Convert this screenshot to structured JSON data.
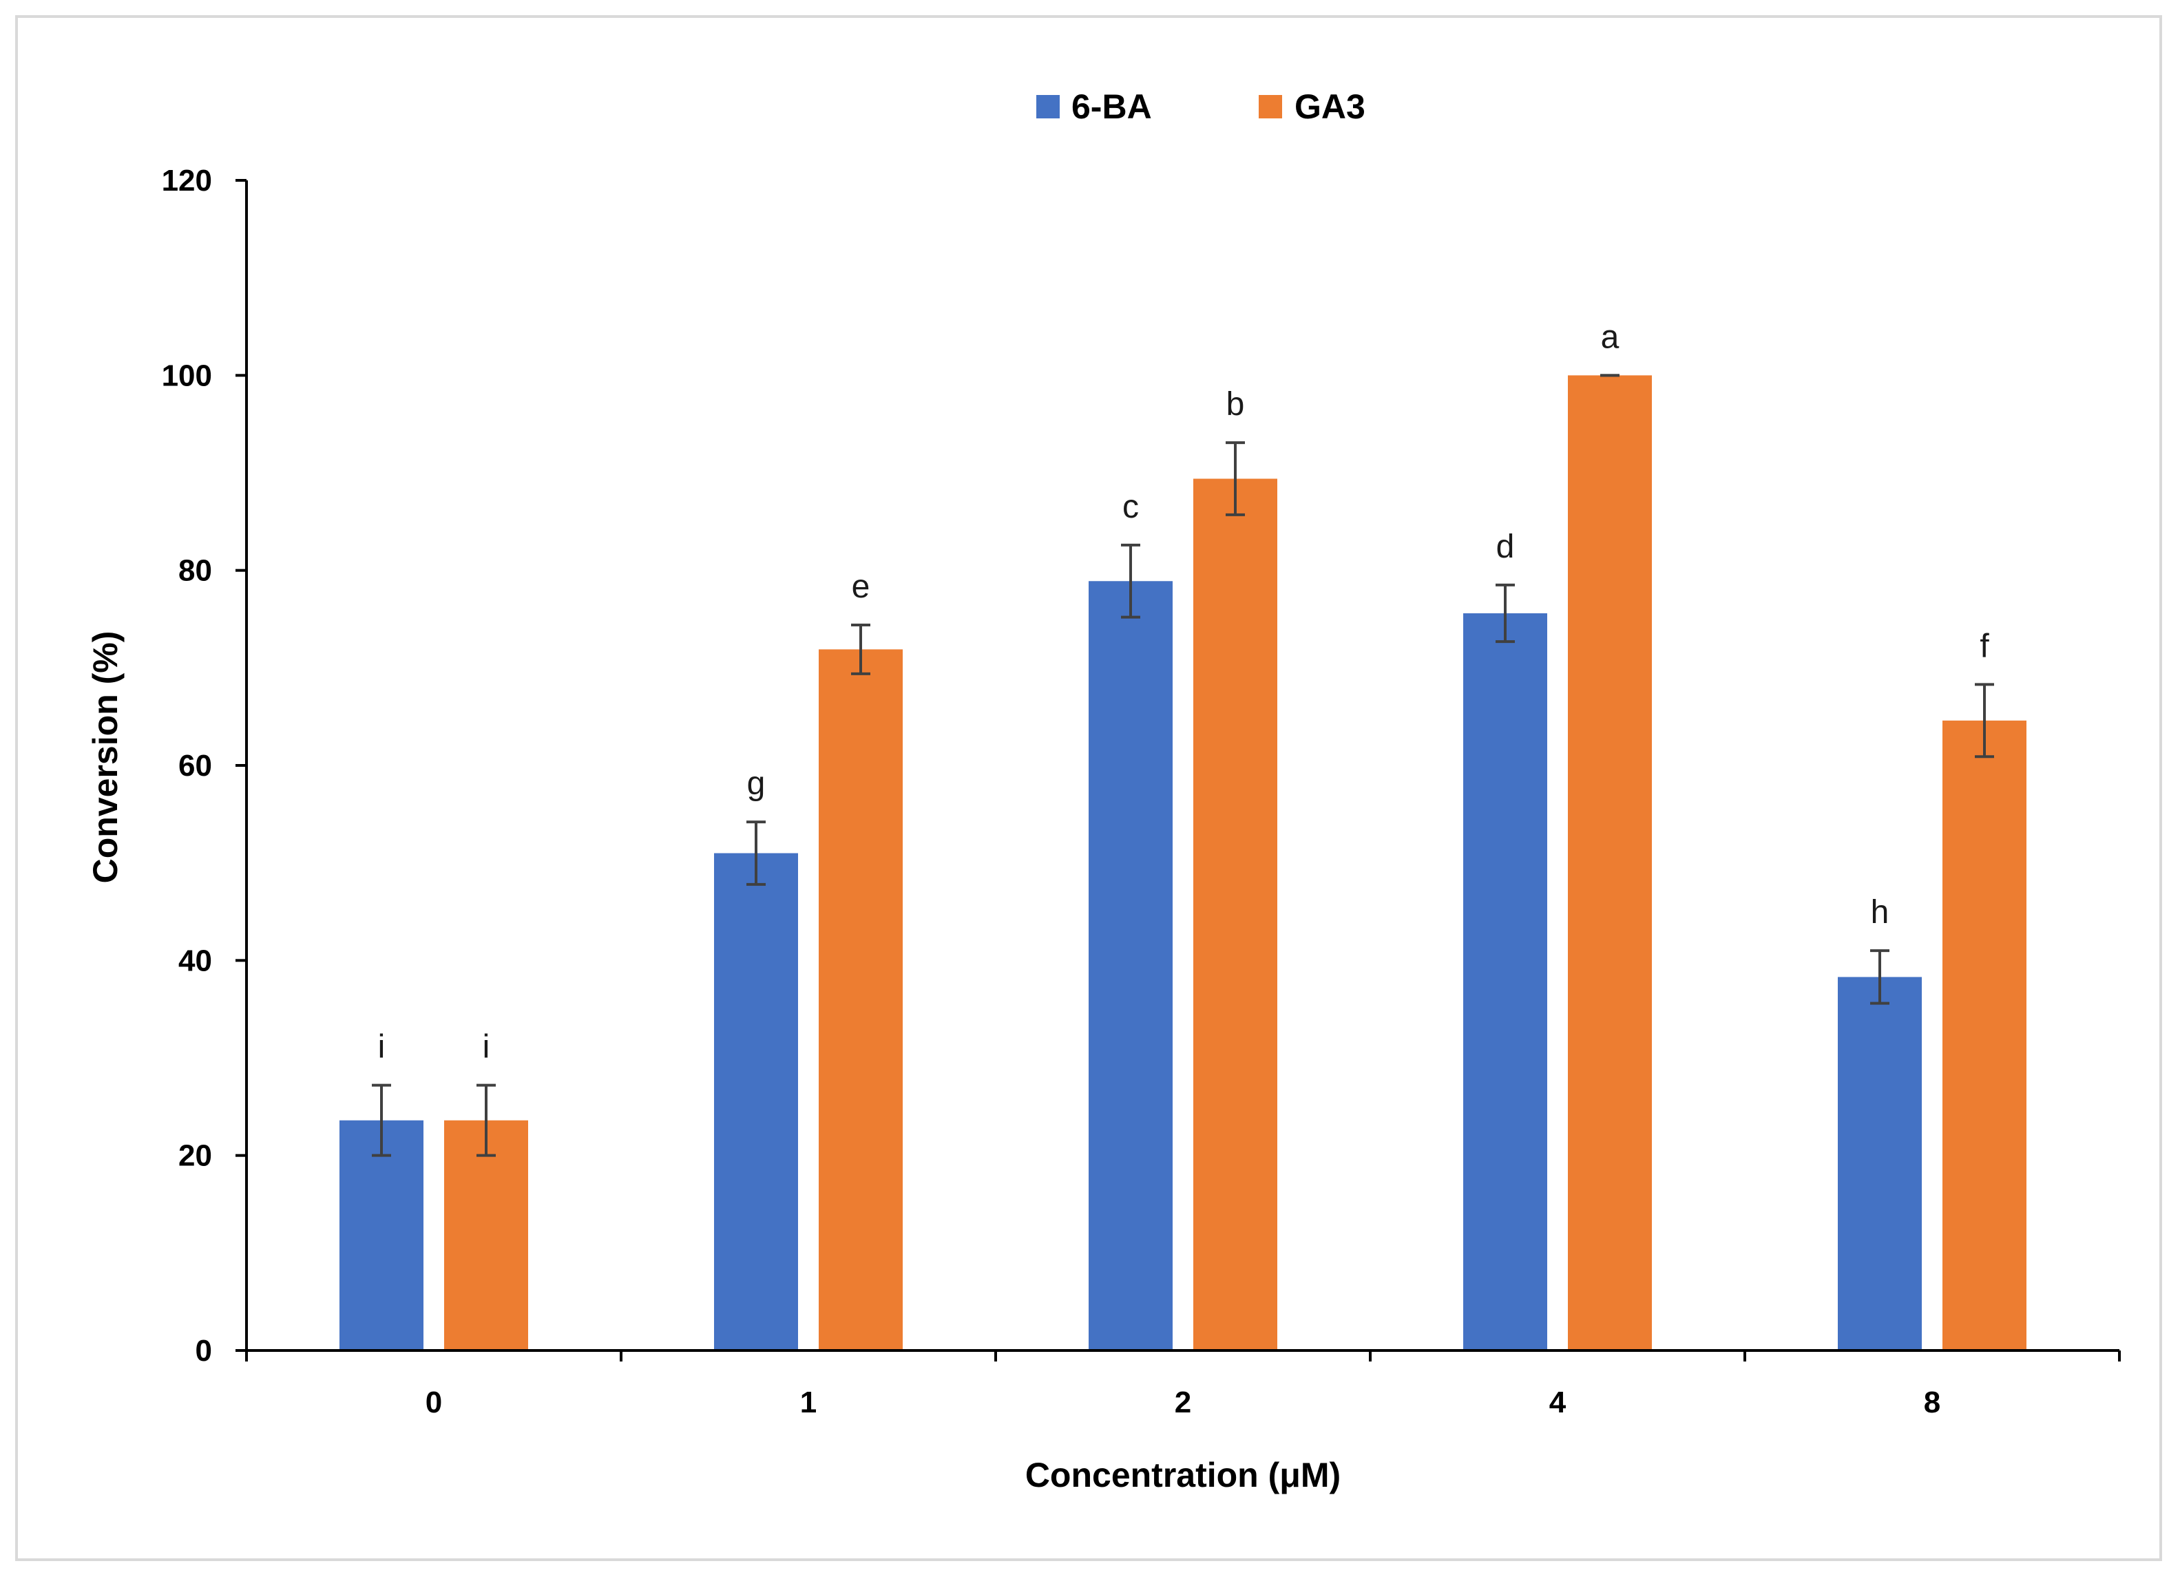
{
  "chart_data": {
    "type": "bar",
    "title": "",
    "xlabel": "Concentration (μM)",
    "ylabel": "Conversion (%)",
    "ylim": [
      0,
      120
    ],
    "yticks": [
      "0",
      "20",
      "40",
      "60",
      "80",
      "100",
      "120"
    ],
    "categories": [
      "0",
      "1",
      "2",
      "4",
      "8"
    ],
    "legend_position": "top-center",
    "error_bar_color": "#404040",
    "series": [
      {
        "name": "6-BA",
        "color": "#4472C4",
        "values": [
          23.6,
          51.0,
          78.9,
          75.6,
          38.3
        ],
        "errors": [
          3.6,
          3.2,
          3.7,
          2.9,
          2.7
        ],
        "labels": [
          "i",
          "g",
          "c",
          "d",
          "h"
        ]
      },
      {
        "name": "GA3",
        "color": "#ED7D31",
        "values": [
          23.6,
          71.9,
          89.4,
          100.0,
          64.6
        ],
        "errors": [
          3.6,
          2.5,
          3.7,
          0.0,
          3.7
        ],
        "labels": [
          "i",
          "e",
          "b",
          "a",
          "f"
        ]
      }
    ]
  }
}
